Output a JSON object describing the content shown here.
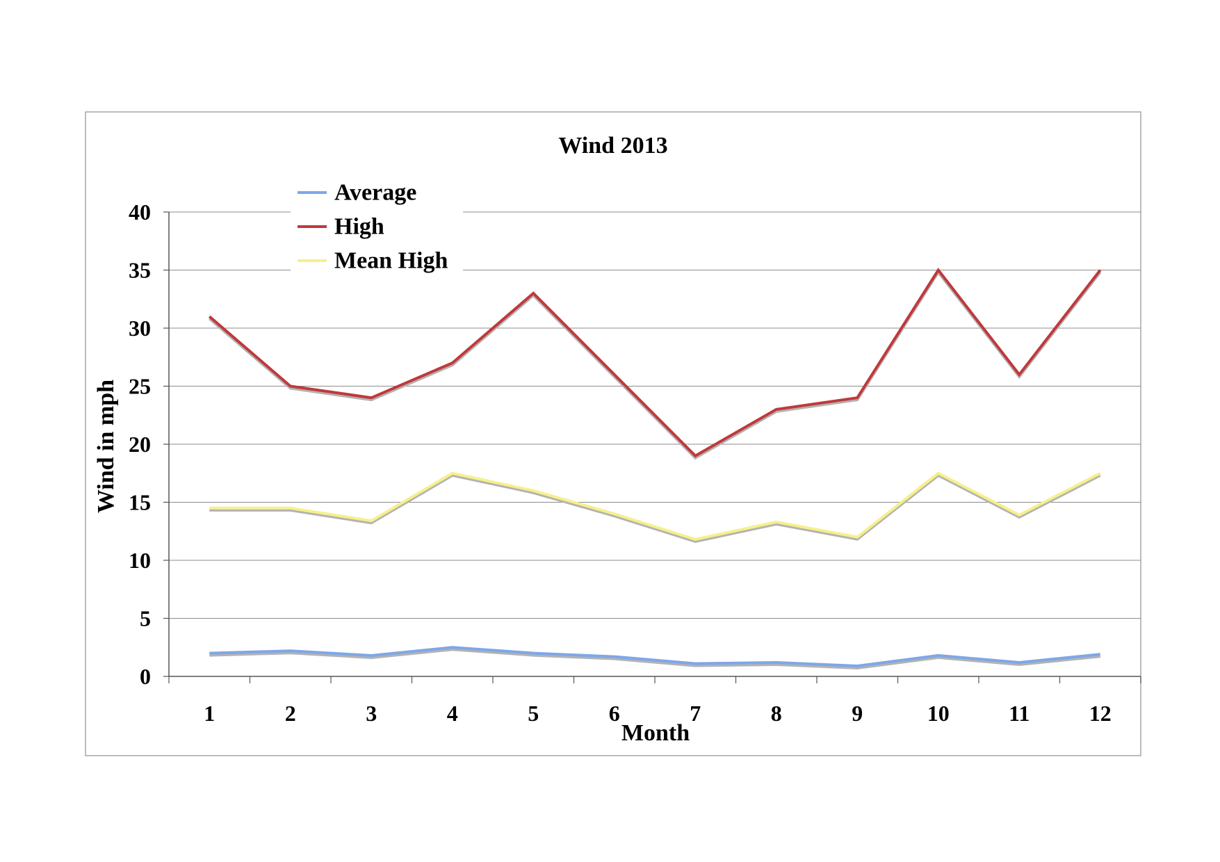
{
  "chart_data": {
    "type": "line",
    "title": "Wind 2013",
    "xlabel": "Month",
    "ylabel": "Wind in mph",
    "categories": [
      "1",
      "2",
      "3",
      "4",
      "5",
      "6",
      "7",
      "8",
      "9",
      "10",
      "11",
      "12"
    ],
    "ylim": [
      0,
      40
    ],
    "yticks": [
      "0",
      "5",
      "10",
      "15",
      "20",
      "25",
      "30",
      "35",
      "40"
    ],
    "grid": true,
    "legend": "top-left",
    "series": [
      {
        "name": "Average",
        "color": "#7ea7e8",
        "values": [
          2.0,
          2.2,
          1.8,
          2.5,
          2.0,
          1.7,
          1.1,
          1.2,
          0.9,
          1.8,
          1.2,
          1.9
        ]
      },
      {
        "name": "High",
        "color": "#c0393b",
        "values": [
          31,
          25,
          24,
          27,
          33,
          26,
          19,
          23,
          24,
          35,
          26,
          35
        ]
      },
      {
        "name": "Mean High",
        "color": "#f7f08a",
        "values": [
          14.5,
          14.5,
          13.4,
          17.5,
          16.0,
          14.0,
          11.8,
          13.3,
          12.0,
          17.5,
          13.9,
          17.5
        ]
      }
    ]
  }
}
